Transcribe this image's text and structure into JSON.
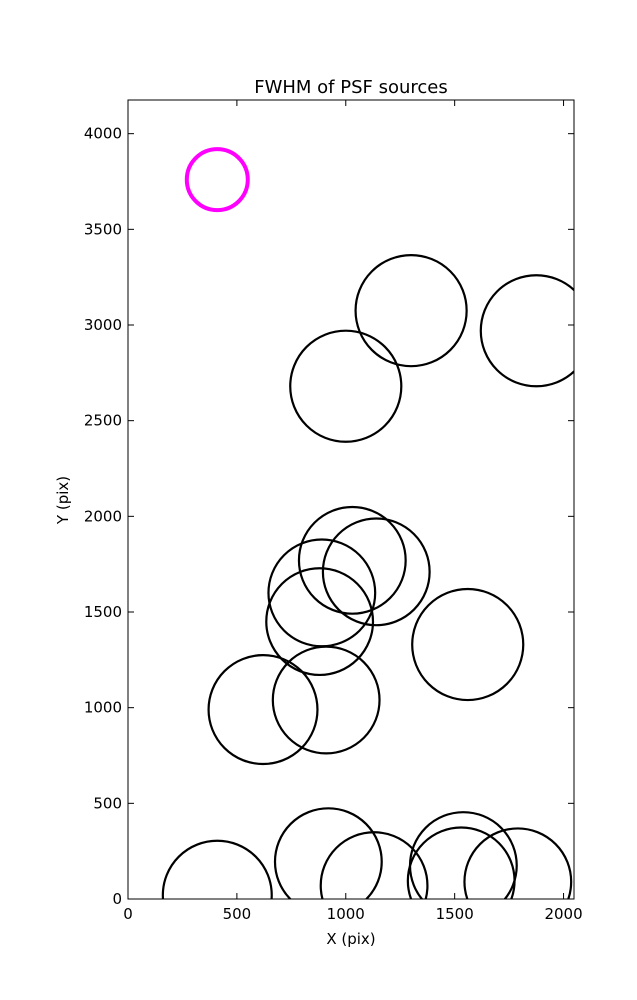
{
  "chart_data": {
    "type": "scatter",
    "title": "FWHM of PSF sources",
    "xlabel": "X (pix)",
    "ylabel": "Y (pix)",
    "xlim": [
      0,
      2048
    ],
    "ylim": [
      0,
      4176
    ],
    "xticks": [
      0,
      500,
      1000,
      1500,
      2000
    ],
    "yticks": [
      0,
      500,
      1000,
      1500,
      2000,
      2500,
      3000,
      3500,
      4000
    ],
    "grid": false,
    "marker": "circle",
    "sources": [
      {
        "x": 1300,
        "y": 3075,
        "size": 255
      },
      {
        "x": 1875,
        "y": 2970,
        "size": 255
      },
      {
        "x": 1000,
        "y": 2680,
        "size": 255
      },
      {
        "x": 1030,
        "y": 1770,
        "size": 245
      },
      {
        "x": 1140,
        "y": 1710,
        "size": 245
      },
      {
        "x": 890,
        "y": 1600,
        "size": 245
      },
      {
        "x": 880,
        "y": 1450,
        "size": 245
      },
      {
        "x": 1560,
        "y": 1330,
        "size": 255
      },
      {
        "x": 620,
        "y": 990,
        "size": 250
      },
      {
        "x": 910,
        "y": 1040,
        "size": 245
      },
      {
        "x": 410,
        "y": 20,
        "size": 250
      },
      {
        "x": 920,
        "y": 195,
        "size": 245
      },
      {
        "x": 1130,
        "y": 70,
        "size": 245
      },
      {
        "x": 1540,
        "y": 175,
        "size": 245
      },
      {
        "x": 1530,
        "y": 95,
        "size": 245
      },
      {
        "x": 1790,
        "y": 90,
        "size": 245
      }
    ],
    "reference": {
      "x": 410,
      "y": 3760,
      "size": 140,
      "color": "#ff00ff"
    }
  }
}
